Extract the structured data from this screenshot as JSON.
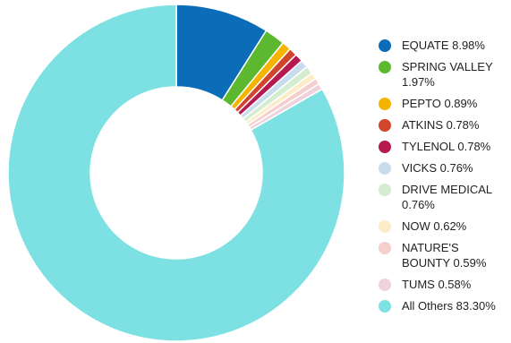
{
  "chart_data": {
    "type": "pie",
    "donut": true,
    "title": "",
    "slices": [
      {
        "label": "EQUATE 8.98%",
        "name": "EQUATE",
        "value": 8.98,
        "color": "#0b6db7"
      },
      {
        "label": "SPRING VALLEY 1.97%",
        "name": "SPRING VALLEY",
        "value": 1.97,
        "color": "#5cb82f"
      },
      {
        "label": "PEPTO 0.89%",
        "name": "PEPTO",
        "value": 0.89,
        "color": "#f4b400"
      },
      {
        "label": "ATKINS 0.78%",
        "name": "ATKINS",
        "value": 0.78,
        "color": "#d0452b"
      },
      {
        "label": "TYLENOL 0.78%",
        "name": "TYLENOL",
        "value": 0.78,
        "color": "#b5194f"
      },
      {
        "label": "VICKS 0.76%",
        "name": "VICKS",
        "value": 0.76,
        "color": "#c9dcee"
      },
      {
        "label": "DRIVE MEDICAL 0.76%",
        "name": "DRIVE MEDICAL",
        "value": 0.76,
        "color": "#d4ecd0"
      },
      {
        "label": "NOW 0.62%",
        "name": "NOW",
        "value": 0.62,
        "color": "#fcecc7"
      },
      {
        "label": "NATURE'S BOUNTY 0.59%",
        "name": "NATURE'S BOUNTY",
        "value": 0.59,
        "color": "#f4cfcc"
      },
      {
        "label": "TUMS 0.58%",
        "name": "TUMS",
        "value": 0.58,
        "color": "#f0d2dc"
      },
      {
        "label": "All Others 83.30%",
        "name": "All Others",
        "value": 83.3,
        "color": "#7de0e2"
      }
    ],
    "legend_position": "right"
  }
}
